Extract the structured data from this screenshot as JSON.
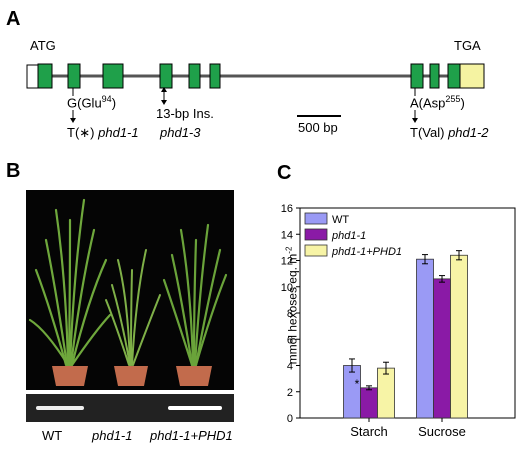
{
  "panels": {
    "a": "A",
    "b": "B",
    "c": "C"
  },
  "gene_model": {
    "start_codon": "ATG",
    "stop_codon": "TGA",
    "scale_bar": "500 bp",
    "mut1": {
      "wt": "G(Glu",
      "wt_sup": "94",
      "wt_close": ")",
      "mut": "T(∗)",
      "allele": "phd1-1"
    },
    "mut3": {
      "desc": "13-bp Ins.",
      "allele": "phd1-3"
    },
    "mut2": {
      "wt": "A(Asp",
      "wt_sup": "255",
      "wt_close": ")",
      "mut": "T(Val)",
      "allele": "phd1-2"
    },
    "colors": {
      "exon": "#1fa04a",
      "utr": "#f5f3a2",
      "intron": "#555555"
    }
  },
  "photo": {
    "labels": [
      "WT",
      "phd1-1",
      "phd1-1+PHD1"
    ]
  },
  "chart_data": {
    "type": "bar",
    "categories": [
      "Starch",
      "Sucrose"
    ],
    "series": [
      {
        "name": "WT",
        "values": [
          4.0,
          12.1
        ],
        "errors": [
          0.5,
          0.35
        ],
        "color": "#9a9af5"
      },
      {
        "name": "phd1-1",
        "values": [
          2.3,
          10.6
        ],
        "errors": [
          0.15,
          0.25
        ],
        "color": "#8a1aa6"
      },
      {
        "name": "phd1-1+PHD1",
        "values": [
          3.8,
          12.4
        ],
        "errors": [
          0.45,
          0.35
        ],
        "color": "#f7f4a6"
      }
    ],
    "significance": [
      {
        "category": "Starch",
        "series": "phd1-1",
        "mark": "*"
      }
    ],
    "ylabel": "mmol hexoses eq. m",
    "ylabel_sup": "-2",
    "xlabel": "",
    "ylim": [
      0,
      16
    ],
    "yticks": [
      "0",
      "2",
      "4",
      "6",
      "8",
      "10",
      "12",
      "14",
      "16"
    ],
    "legend_position": "top-left",
    "grid": false
  }
}
